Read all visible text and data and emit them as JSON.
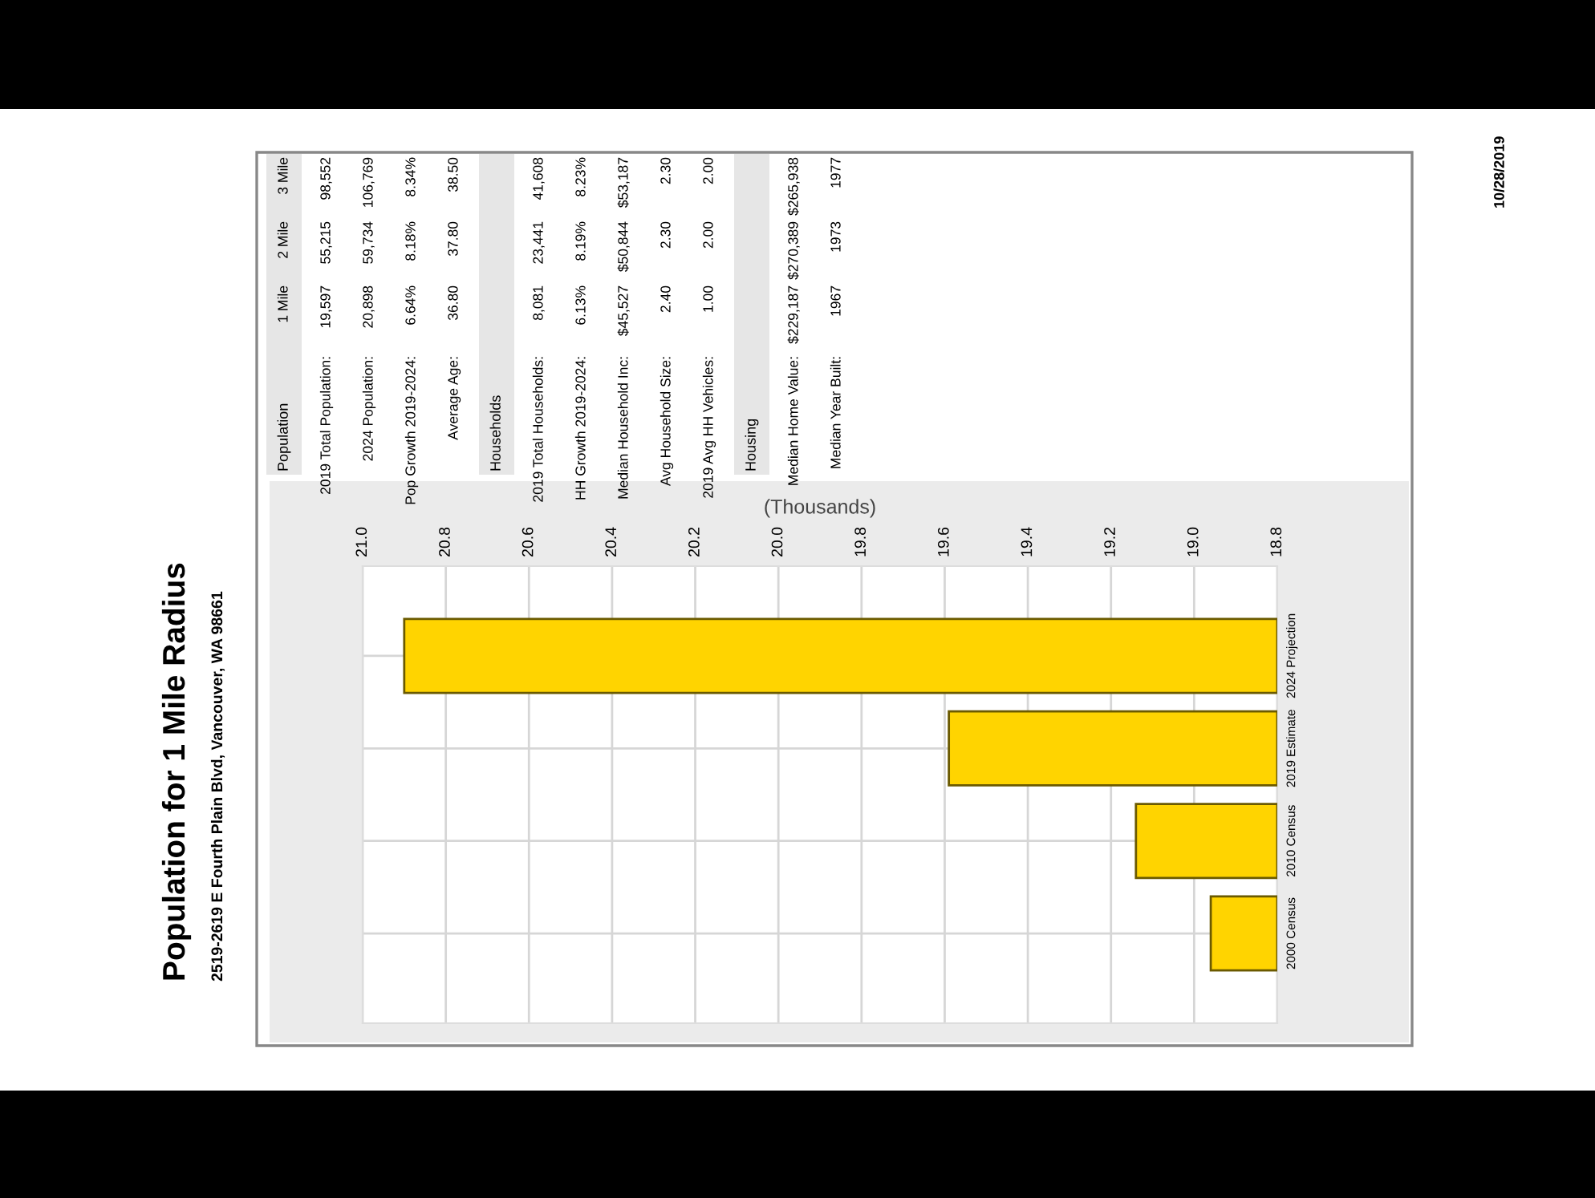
{
  "chart_data": {
    "type": "bar",
    "orientation": "horizontal",
    "title": "Population for 1 Mile Radius",
    "subtitle": "2519-2619 E Fourth Plain Blvd, Vancouver, WA 98661",
    "xlabel": "(Thousands)",
    "categories": [
      "2024 Projection",
      "2019 Estimate",
      "2010 Census",
      "2000 Census"
    ],
    "values": [
      20.9,
      19.59,
      19.14,
      18.96
    ],
    "color": "#ffd400",
    "xlim": [
      21.0,
      18.8
    ],
    "xticks": [
      {
        "value": 21.0,
        "label": "21.0"
      },
      {
        "value": 20.8,
        "label": "20.8"
      },
      {
        "value": 20.6,
        "label": "20.6"
      },
      {
        "value": 20.4,
        "label": "20.4"
      },
      {
        "value": 20.2,
        "label": "20.2"
      },
      {
        "value": 20.0,
        "label": "20.0"
      },
      {
        "value": 19.8,
        "label": "19.8"
      },
      {
        "value": 19.6,
        "label": "19.6"
      },
      {
        "value": 19.4,
        "label": "19.4"
      },
      {
        "value": 19.2,
        "label": "19.2"
      },
      {
        "value": 19.0,
        "label": "19.0"
      },
      {
        "value": 18.8,
        "label": "18.8"
      }
    ],
    "grid": true,
    "annotations": [
      "Population",
      "1 Mile",
      "2 Mile",
      "3 Mile",
      "2019 Total Population:",
      "19,597",
      "55,215",
      "98,552",
      "2024 Population:",
      "20,898",
      "59,734",
      "106,769",
      "Pop Growth 2019-2024:",
      "6.64%",
      "8.18%",
      "8.34%",
      "Average Age:",
      "36.80",
      "37.80",
      "38.50",
      "Households",
      "2019 Total Households:",
      "8,081",
      "23,441",
      "41,608",
      "HH Growth 2019-2024:",
      "6.13%",
      "8.19%",
      "8.23%",
      "Median Household Inc:",
      "$45,527",
      "$50,844",
      "$53,187",
      "Avg Household Size:",
      "2.40",
      "2.30",
      "2.30",
      "2019 Avg HH Vehicles:",
      "1.00",
      "2.00",
      "2.00",
      "Housing",
      "Median Home Value:",
      "$229,187",
      "$270,389",
      "$265,938",
      "Median Year Built:",
      "1967",
      "1973",
      "1977",
      "10/28/2019"
    ]
  }
}
